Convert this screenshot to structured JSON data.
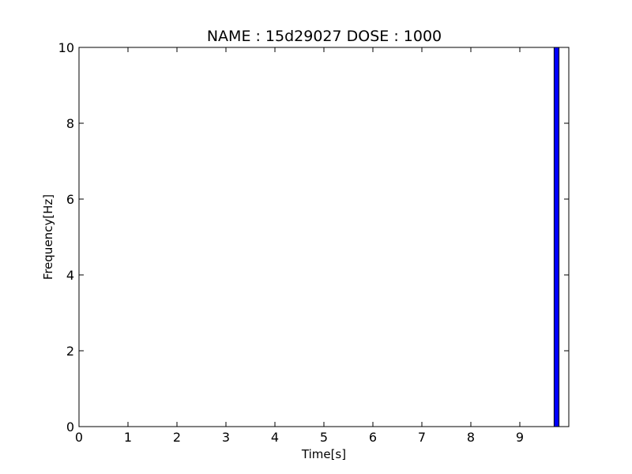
{
  "chart_data": {
    "type": "bar",
    "title": "NAME : 15d29027 DOSE : 1000",
    "xlabel": "Time[s]",
    "ylabel": "Frequency[Hz]",
    "xlim": [
      0,
      10
    ],
    "ylim": [
      0,
      10
    ],
    "xticks": [
      "0",
      "1",
      "2",
      "3",
      "4",
      "5",
      "6",
      "7",
      "8",
      "9"
    ],
    "yticks": [
      "0",
      "2",
      "4",
      "6",
      "8",
      "10"
    ],
    "bar_width": 0.1,
    "series": [
      {
        "color": "#0000ff",
        "bars": [
          {
            "x": 9.7,
            "value": 10
          }
        ]
      }
    ],
    "grid": false,
    "legend": "none"
  }
}
